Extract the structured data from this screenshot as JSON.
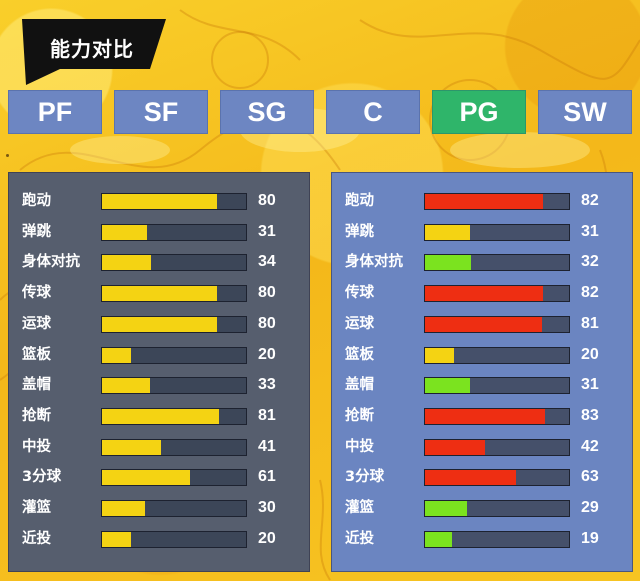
{
  "title": "能力对比",
  "tabs": [
    {
      "label": "PF",
      "active": false
    },
    {
      "label": "SF",
      "active": false
    },
    {
      "label": "SG",
      "active": false
    },
    {
      "label": "C",
      "active": false
    },
    {
      "label": "PG",
      "active": true
    },
    {
      "label": "SW",
      "active": false
    }
  ],
  "colors": {
    "yellow": "#f4d313",
    "red": "#ee2e12",
    "green": "#7be31f",
    "tab_default": "#6d86c2",
    "tab_active": "#2fb56a",
    "panel_left": "#565e6e",
    "panel_right": "#6b85c1",
    "bar_track": "#3c4658"
  },
  "stat_max": 100,
  "left_panel": {
    "stats": [
      {
        "label": "跑动",
        "value": 80,
        "color": "yellow"
      },
      {
        "label": "弹跳",
        "value": 31,
        "color": "yellow"
      },
      {
        "label": "身体对抗",
        "value": 34,
        "color": "yellow"
      },
      {
        "label": "传球",
        "value": 80,
        "color": "yellow"
      },
      {
        "label": "运球",
        "value": 80,
        "color": "yellow"
      },
      {
        "label": "篮板",
        "value": 20,
        "color": "yellow"
      },
      {
        "label": "盖帽",
        "value": 33,
        "color": "yellow"
      },
      {
        "label": "抢断",
        "value": 81,
        "color": "yellow"
      },
      {
        "label": "中投",
        "value": 41,
        "color": "yellow"
      },
      {
        "label": "3分球",
        "value": 61,
        "color": "yellow"
      },
      {
        "label": "灌篮",
        "value": 30,
        "color": "yellow"
      },
      {
        "label": "近投",
        "value": 20,
        "color": "yellow"
      }
    ]
  },
  "right_panel": {
    "stats": [
      {
        "label": "跑动",
        "value": 82,
        "color": "red"
      },
      {
        "label": "弹跳",
        "value": 31,
        "color": "yellow"
      },
      {
        "label": "身体对抗",
        "value": 32,
        "color": "green"
      },
      {
        "label": "传球",
        "value": 82,
        "color": "red"
      },
      {
        "label": "运球",
        "value": 81,
        "color": "red"
      },
      {
        "label": "篮板",
        "value": 20,
        "color": "yellow"
      },
      {
        "label": "盖帽",
        "value": 31,
        "color": "green"
      },
      {
        "label": "抢断",
        "value": 83,
        "color": "red"
      },
      {
        "label": "中投",
        "value": 42,
        "color": "red"
      },
      {
        "label": "3分球",
        "value": 63,
        "color": "red"
      },
      {
        "label": "灌篮",
        "value": 29,
        "color": "green"
      },
      {
        "label": "近投",
        "value": 19,
        "color": "green"
      }
    ]
  }
}
